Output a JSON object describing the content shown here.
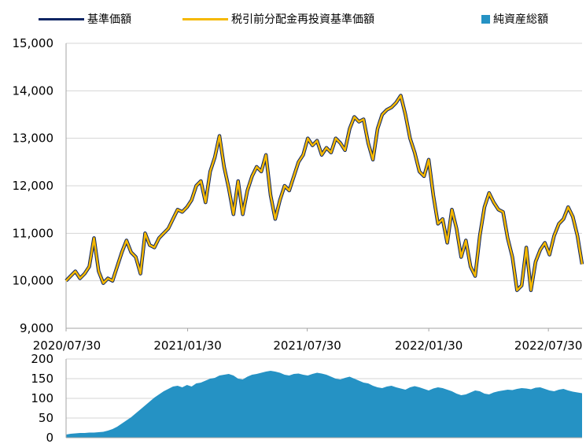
{
  "legend": {
    "nav": "基準価額",
    "nav_reinvested": "税引前分配金再投資基準価額",
    "net_assets": "純資産総額"
  },
  "colors": {
    "nav": "#0d2563",
    "nav_reinvested": "#f5b800",
    "net_assets": "#2592c4",
    "grid": "#d4d4d4",
    "axis": "#a6a6a6"
  },
  "chart_data": [
    {
      "type": "line",
      "series": [
        {
          "name": "基準価額",
          "color": "#0d2563"
        },
        {
          "name": "税引前分配金再投資基準価額",
          "color": "#f5b800"
        }
      ],
      "x": [
        "2020/07/30",
        "2020/08/10",
        "2020/08/17",
        "2020/08/24",
        "2020/08/31",
        "2020/09/07",
        "2020/09/14",
        "2020/09/21",
        "2020/09/28",
        "2020/10/05",
        "2020/10/12",
        "2020/10/19",
        "2020/10/26",
        "2020/11/02",
        "2020/11/09",
        "2020/11/16",
        "2020/11/23",
        "2020/11/30",
        "2020/12/07",
        "2020/12/14",
        "2020/12/21",
        "2020/12/28",
        "2021/01/04",
        "2021/01/11",
        "2021/01/18",
        "2021/01/25",
        "2021/02/01",
        "2021/02/08",
        "2021/02/15",
        "2021/02/22",
        "2021/03/01",
        "2021/03/08",
        "2021/03/15",
        "2021/03/22",
        "2021/03/29",
        "2021/04/05",
        "2021/04/12",
        "2021/04/19",
        "2021/04/26",
        "2021/05/03",
        "2021/05/10",
        "2021/05/17",
        "2021/05/24",
        "2021/05/31",
        "2021/06/07",
        "2021/06/14",
        "2021/06/21",
        "2021/06/28",
        "2021/07/05",
        "2021/07/12",
        "2021/07/19",
        "2021/07/26",
        "2021/08/02",
        "2021/08/09",
        "2021/08/16",
        "2021/08/23",
        "2021/08/30",
        "2021/09/06",
        "2021/09/13",
        "2021/09/20",
        "2021/09/27",
        "2021/10/04",
        "2021/10/11",
        "2021/10/18",
        "2021/10/25",
        "2021/11/01",
        "2021/11/08",
        "2021/11/15",
        "2021/11/22",
        "2021/11/29",
        "2021/12/06",
        "2021/12/13",
        "2021/12/20",
        "2021/12/27",
        "2022/01/03",
        "2022/01/10",
        "2022/01/17",
        "2022/01/24",
        "2022/01/31",
        "2022/02/07",
        "2022/02/14",
        "2022/02/21",
        "2022/02/28",
        "2022/03/07",
        "2022/03/14",
        "2022/03/21",
        "2022/03/28",
        "2022/04/04",
        "2022/04/11",
        "2022/04/18",
        "2022/04/25",
        "2022/05/02",
        "2022/05/09",
        "2022/05/16",
        "2022/05/23",
        "2022/05/30",
        "2022/06/06",
        "2022/06/13",
        "2022/06/20",
        "2022/06/27",
        "2022/07/04",
        "2022/07/11",
        "2022/07/18",
        "2022/07/25",
        "2022/08/01",
        "2022/08/08",
        "2022/08/15",
        "2022/08/22",
        "2022/08/29",
        "2022/09/05",
        "2022/09/12",
        "2022/09/19"
      ],
      "values": [
        10000,
        10100,
        10200,
        10050,
        10150,
        10300,
        10900,
        10200,
        9950,
        10050,
        10000,
        10300,
        10600,
        10850,
        10600,
        10500,
        10150,
        11000,
        10750,
        10700,
        10900,
        11000,
        11100,
        11300,
        11500,
        11450,
        11550,
        11700,
        12000,
        12100,
        11650,
        12300,
        12600,
        13050,
        12400,
        11950,
        11400,
        12100,
        11400,
        11900,
        12200,
        12400,
        12300,
        12650,
        11800,
        11300,
        11700,
        12000,
        11900,
        12200,
        12500,
        12650,
        13000,
        12850,
        12950,
        12650,
        12800,
        12700,
        13000,
        12900,
        12750,
        13200,
        13450,
        13350,
        13400,
        12900,
        12550,
        13200,
        13500,
        13600,
        13650,
        13750,
        13900,
        13500,
        13000,
        12700,
        12300,
        12200,
        12550,
        11800,
        11200,
        11300,
        10800,
        11500,
        11100,
        10500,
        10850,
        10300,
        10100,
        10950,
        11550,
        11850,
        11650,
        11500,
        11450,
        10900,
        10500,
        9800,
        9900,
        10700,
        9800,
        10400,
        10650,
        10800,
        10550,
        10950,
        11200,
        11300,
        11550,
        11350,
        10950,
        10350
      ],
      "ylim": [
        9000,
        15000
      ],
      "yticks": [
        "9,000",
        "10,000",
        "11,000",
        "12,000",
        "13,000",
        "14,000",
        "15,000"
      ],
      "xticks": [
        "2020/07/30",
        "2021/01/30",
        "2021/07/30",
        "2022/01/30",
        "2022/07/30"
      ]
    },
    {
      "type": "area",
      "series": [
        {
          "name": "純資産総額",
          "color": "#2592c4"
        }
      ],
      "values": [
        8,
        10,
        11,
        12,
        12,
        13,
        13,
        14,
        15,
        18,
        22,
        28,
        36,
        44,
        52,
        62,
        72,
        82,
        92,
        102,
        110,
        118,
        124,
        130,
        132,
        128,
        134,
        130,
        138,
        140,
        145,
        150,
        152,
        158,
        160,
        162,
        158,
        150,
        148,
        155,
        160,
        162,
        165,
        168,
        170,
        168,
        165,
        160,
        158,
        162,
        163,
        160,
        158,
        162,
        165,
        163,
        160,
        155,
        150,
        148,
        152,
        155,
        150,
        145,
        140,
        138,
        132,
        128,
        126,
        130,
        132,
        128,
        125,
        122,
        128,
        131,
        128,
        124,
        120,
        125,
        128,
        126,
        122,
        118,
        112,
        108,
        110,
        115,
        120,
        118,
        112,
        110,
        115,
        118,
        120,
        122,
        121,
        124,
        126,
        125,
        123,
        127,
        128,
        124,
        120,
        118,
        122,
        124,
        120,
        117,
        115,
        113
      ],
      "ylim": [
        0,
        200
      ],
      "yticks": [
        "0",
        "50",
        "100",
        "150",
        "200"
      ]
    }
  ]
}
